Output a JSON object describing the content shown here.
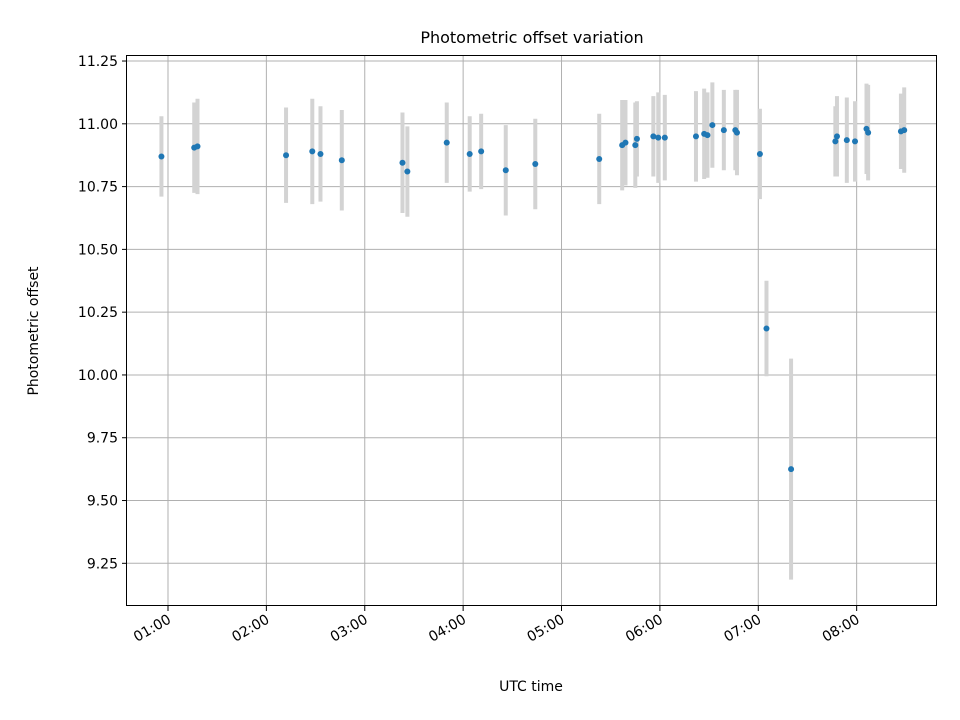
{
  "chart_data": {
    "type": "scatter",
    "title": "Photometric offset variation",
    "xlabel": "UTC time",
    "ylabel": "Photometric offset",
    "grid": true,
    "x_ticks": [
      "01:00",
      "02:00",
      "03:00",
      "04:00",
      "05:00",
      "06:00",
      "07:00",
      "08:00"
    ],
    "y_ticks": [
      "9.25",
      "9.50",
      "9.75",
      "10.00",
      "10.25",
      "10.50",
      "10.75",
      "11.00",
      "11.25"
    ],
    "xlim": [
      "00:35",
      "08:49"
    ],
    "ylim": [
      9.08,
      11.27
    ],
    "colors": {
      "marker": "#1f77b4",
      "errorbar": "#d3d3d3",
      "grid": "#b0b0b0"
    },
    "points": [
      {
        "x": "00:56",
        "y": 10.87,
        "err": 0.16
      },
      {
        "x": "01:16",
        "y": 10.905,
        "err": 0.18
      },
      {
        "x": "01:18",
        "y": 10.91,
        "err": 0.19
      },
      {
        "x": "02:12",
        "y": 10.875,
        "err": 0.19
      },
      {
        "x": "02:28",
        "y": 10.89,
        "err": 0.21
      },
      {
        "x": "02:33",
        "y": 10.88,
        "err": 0.19
      },
      {
        "x": "02:46",
        "y": 10.855,
        "err": 0.2
      },
      {
        "x": "03:23",
        "y": 10.845,
        "err": 0.2
      },
      {
        "x": "03:26",
        "y": 10.81,
        "err": 0.18
      },
      {
        "x": "03:50",
        "y": 10.925,
        "err": 0.16
      },
      {
        "x": "04:04",
        "y": 10.88,
        "err": 0.15
      },
      {
        "x": "04:11",
        "y": 10.89,
        "err": 0.15
      },
      {
        "x": "04:26",
        "y": 10.815,
        "err": 0.18
      },
      {
        "x": "04:44",
        "y": 10.84,
        "err": 0.18
      },
      {
        "x": "05:23",
        "y": 10.86,
        "err": 0.18
      },
      {
        "x": "05:37",
        "y": 10.915,
        "err": 0.18
      },
      {
        "x": "05:39",
        "y": 10.925,
        "err": 0.17
      },
      {
        "x": "05:45",
        "y": 10.915,
        "err": 0.17
      },
      {
        "x": "05:46",
        "y": 10.94,
        "err": 0.15
      },
      {
        "x": "05:56",
        "y": 10.95,
        "err": 0.16
      },
      {
        "x": "05:59",
        "y": 10.945,
        "err": 0.18
      },
      {
        "x": "06:03",
        "y": 10.945,
        "err": 0.17
      },
      {
        "x": "06:22",
        "y": 10.95,
        "err": 0.18
      },
      {
        "x": "06:27",
        "y": 10.96,
        "err": 0.18
      },
      {
        "x": "06:29",
        "y": 10.955,
        "err": 0.17
      },
      {
        "x": "06:32",
        "y": 10.995,
        "err": 0.17
      },
      {
        "x": "06:39",
        "y": 10.975,
        "err": 0.16
      },
      {
        "x": "06:46",
        "y": 10.975,
        "err": 0.16
      },
      {
        "x": "06:47",
        "y": 10.965,
        "err": 0.17
      },
      {
        "x": "07:01",
        "y": 10.88,
        "err": 0.18
      },
      {
        "x": "07:05",
        "y": 10.185,
        "err": 0.19
      },
      {
        "x": "07:20",
        "y": 9.625,
        "err": 0.44
      },
      {
        "x": "07:47",
        "y": 10.93,
        "err": 0.14
      },
      {
        "x": "07:48",
        "y": 10.95,
        "err": 0.16
      },
      {
        "x": "07:54",
        "y": 10.935,
        "err": 0.17
      },
      {
        "x": "07:59",
        "y": 10.93,
        "err": 0.16
      },
      {
        "x": "08:06",
        "y": 10.98,
        "err": 0.18
      },
      {
        "x": "08:07",
        "y": 10.965,
        "err": 0.19
      },
      {
        "x": "08:27",
        "y": 10.97,
        "err": 0.15
      },
      {
        "x": "08:29",
        "y": 10.975,
        "err": 0.17
      }
    ]
  }
}
